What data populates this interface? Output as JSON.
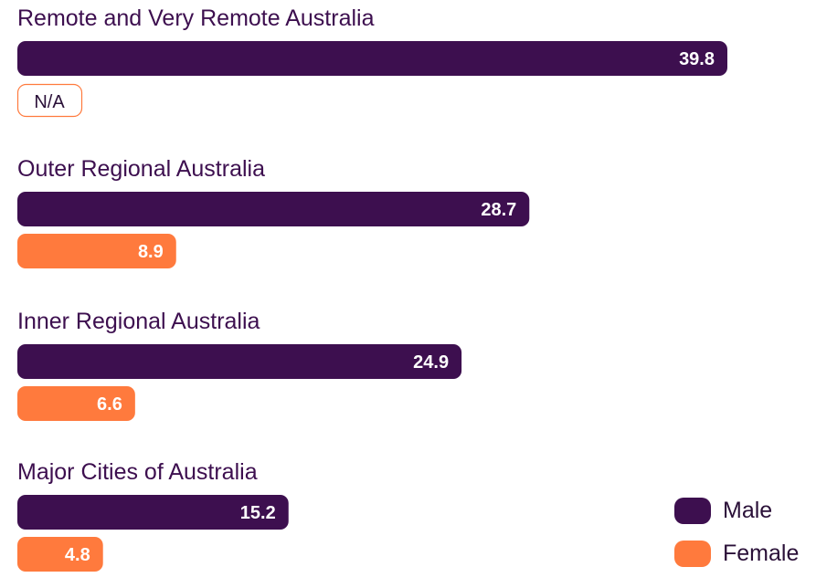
{
  "chart_data": {
    "type": "bar",
    "orientation": "horizontal",
    "title": "",
    "xlabel": "",
    "ylabel": "",
    "xlim": [
      0,
      42
    ],
    "grid": false,
    "legend_position": "bottom-right",
    "categories": [
      "Remote and Very Remote Australia",
      "Outer Regional Australia",
      "Inner Regional Australia",
      "Major Cities of Australia"
    ],
    "series": [
      {
        "name": "Male",
        "color": "#3d0f4f",
        "values": [
          39.8,
          28.7,
          24.9,
          15.2
        ],
        "labels": [
          "39.8",
          "28.7",
          "24.9",
          "15.2"
        ]
      },
      {
        "name": "Female",
        "color": "#ff7a3d",
        "values": [
          null,
          8.9,
          6.6,
          4.8
        ],
        "labels": [
          "N/A",
          "8.9",
          "6.6",
          "4.8"
        ]
      }
    ],
    "missing_label": "N/A"
  }
}
